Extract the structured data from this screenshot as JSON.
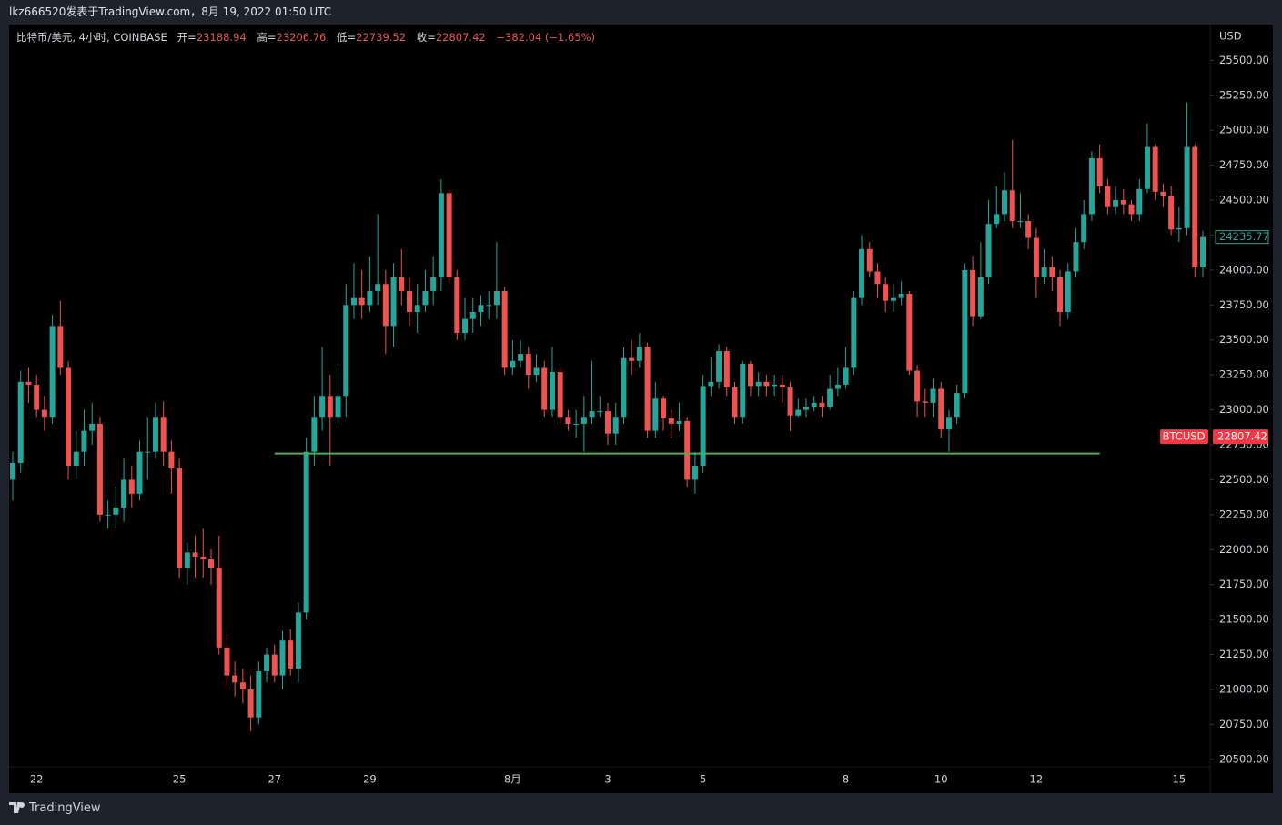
{
  "header": {
    "text": "lkz666520发表于TradingView.com，8月 19, 2022 01:50 UTC"
  },
  "footer": {
    "brand": "TradingView"
  },
  "chart_data": {
    "type": "candlestick",
    "symbol": "比特币/美元, 4小时, COINBASE",
    "legend": [
      {
        "label": "开=",
        "value": 23188.94
      },
      {
        "label": "高=",
        "value": 23206.76
      },
      {
        "label": "低=",
        "value": 22739.52
      },
      {
        "label": "收=",
        "value": 22807.42
      }
    ],
    "change": "−382.04 (−1.65%)",
    "currency": "USD",
    "up_color": "#26a69a",
    "down_color": "#ef5350",
    "categories": [
      null,
      null,
      null,
      "22",
      null,
      null,
      null,
      null,
      null,
      null,
      null,
      null,
      null,
      null,
      null,
      null,
      null,
      null,
      null,
      null,
      null,
      "25",
      null,
      null,
      null,
      null,
      null,
      null,
      null,
      null,
      null,
      null,
      null,
      "27",
      null,
      null,
      null,
      null,
      null,
      null,
      null,
      null,
      null,
      null,
      null,
      "29",
      null,
      null,
      null,
      null,
      null,
      null,
      null,
      null,
      null,
      null,
      null,
      null,
      null,
      null,
      null,
      null,
      null,
      "8月",
      null,
      null,
      null,
      null,
      null,
      null,
      null,
      null,
      null,
      null,
      null,
      "3",
      null,
      null,
      null,
      null,
      null,
      null,
      null,
      null,
      null,
      null,
      null,
      "5",
      null,
      null,
      null,
      null,
      null,
      null,
      null,
      null,
      null,
      null,
      null,
      null,
      null,
      null,
      null,
      null,
      null,
      "8",
      null,
      null,
      null,
      null,
      null,
      null,
      null,
      null,
      null,
      null,
      null,
      "10",
      null,
      null,
      null,
      null,
      null,
      null,
      null,
      null,
      null,
      null,
      null,
      "12",
      null,
      null,
      null,
      null,
      null,
      null,
      null,
      null,
      null,
      null,
      null,
      null,
      null,
      null,
      null,
      null,
      null,
      "15",
      null,
      null,
      null
    ],
    "open": [
      22500,
      22620,
      23200,
      23180,
      23000,
      22950,
      23600,
      23300,
      22600,
      22700,
      22850,
      22900,
      22250,
      22250,
      22300,
      22500,
      22400,
      22700,
      22700,
      22950,
      22700,
      22580,
      21870,
      21980,
      21950,
      21930,
      21870,
      21300,
      21100,
      21050,
      21000,
      20800,
      21130,
      21250,
      21100,
      21350,
      21150,
      21550,
      22700,
      22950,
      23100,
      22950,
      23100,
      23750,
      23800,
      23750,
      23850,
      23900,
      23600,
      23950,
      23850,
      23700,
      23750,
      23850,
      23950,
      24550,
      23950,
      23550,
      23650,
      23700,
      23750,
      23750,
      23850,
      23300,
      23350,
      23400,
      23250,
      23300,
      23000,
      23270,
      22950,
      22900,
      22900,
      22950,
      22990,
      22990,
      22830,
      22950,
      23370,
      23350,
      23450,
      22850,
      23080,
      22940,
      22900,
      22920,
      22500,
      22600,
      23170,
      23200,
      23420,
      23160,
      22950,
      23330,
      23170,
      23200,
      23170,
      23180,
      23160,
      22960,
      23000,
      23020,
      23050,
      23020,
      23150,
      23180,
      23300,
      23800,
      24150,
      23990,
      23900,
      23780,
      23800,
      23830,
      23280,
      23060,
      23050,
      23150,
      22860,
      22950,
      23120,
      24000,
      23670,
      23950,
      24330,
      24400,
      24570,
      24350,
      24350,
      24230,
      23950,
      24020,
      23950,
      23700,
      23990,
      24200,
      24400,
      24800,
      24600,
      24450,
      24500,
      24470,
      24400,
      24580,
      24880,
      24560,
      24530,
      24290,
      24300,
      24880,
      24020
    ],
    "high": [
      22700,
      23280,
      23300,
      23250,
      23100,
      23680,
      23780,
      23350,
      22850,
      23000,
      23050,
      22950,
      22350,
      22450,
      22650,
      22600,
      22780,
      22950,
      23050,
      23060,
      22780,
      22650,
      22050,
      22100,
      22150,
      22000,
      22100,
      21400,
      21200,
      21150,
      21100,
      21200,
      21300,
      21320,
      21420,
      21430,
      21620,
      22800,
      23100,
      23450,
      23250,
      23300,
      23900,
      24050,
      24000,
      24100,
      24400,
      24000,
      24050,
      24150,
      23950,
      23900,
      24000,
      24100,
      24650,
      24580,
      24000,
      23800,
      23800,
      23820,
      23850,
      24200,
      23880,
      23500,
      23500,
      23450,
      23400,
      23350,
      23450,
      23300,
      23000,
      23000,
      23100,
      23350,
      23100,
      23050,
      23050,
      23450,
      23500,
      23550,
      23480,
      23200,
      23100,
      23000,
      23050,
      22950,
      22700,
      23250,
      23380,
      23470,
      23450,
      23200,
      23350,
      23350,
      23270,
      23250,
      23250,
      23250,
      23200,
      23080,
      23080,
      23100,
      23100,
      23250,
      23300,
      23450,
      23850,
      24250,
      24200,
      24050,
      23950,
      23900,
      23920,
      23850,
      23320,
      23150,
      23220,
      23200,
      23000,
      23180,
      24050,
      24100,
      24200,
      24500,
      24600,
      24700,
      24930,
      24550,
      24400,
      24300,
      24150,
      24100,
      24000,
      24050,
      24300,
      24500,
      24850,
      24900,
      24650,
      24600,
      24580,
      24500,
      24650,
      25050,
      24900,
      24620,
      24600,
      24450,
      25200,
      24900,
      24280
    ],
    "low": [
      22350,
      22550,
      23050,
      22950,
      22850,
      22900,
      23250,
      22500,
      22500,
      22600,
      22750,
      22200,
      22150,
      22150,
      22200,
      22300,
      22350,
      22500,
      22650,
      22600,
      22400,
      21800,
      21750,
      21800,
      21800,
      21750,
      21250,
      21000,
      20950,
      20900,
      20700,
      20750,
      21050,
      21050,
      21000,
      21100,
      21050,
      21500,
      22600,
      22850,
      22600,
      22900,
      22950,
      23650,
      23650,
      23700,
      23750,
      23400,
      23450,
      23750,
      23600,
      23550,
      23700,
      23750,
      23850,
      23900,
      23500,
      23500,
      23550,
      23600,
      23650,
      23650,
      23250,
      23250,
      23300,
      23150,
      23200,
      22950,
      22950,
      22900,
      22850,
      22800,
      22700,
      22900,
      22950,
      22750,
      22750,
      22900,
      23250,
      23300,
      22800,
      22800,
      22850,
      22800,
      22850,
      22450,
      22400,
      22550,
      23100,
      23150,
      23100,
      22900,
      22900,
      23100,
      23100,
      23100,
      23100,
      23050,
      22850,
      22950,
      22950,
      22990,
      22950,
      23000,
      23100,
      23150,
      23250,
      23750,
      23950,
      23800,
      23700,
      23700,
      23750,
      23250,
      22950,
      22950,
      22950,
      22800,
      22700,
      22900,
      23080,
      23600,
      23650,
      23900,
      24300,
      24350,
      24300,
      24300,
      24150,
      23800,
      23900,
      23850,
      23600,
      23650,
      23950,
      24150,
      24350,
      24550,
      24400,
      24400,
      24400,
      24350,
      24350,
      24550,
      24500,
      24450,
      24250,
      24200,
      24250,
      23950,
      23950
    ],
    "close": [
      22620,
      23200,
      23180,
      23000,
      22950,
      23600,
      23300,
      22600,
      22700,
      22850,
      22900,
      22250,
      22250,
      22300,
      22500,
      22400,
      22700,
      22700,
      22950,
      22700,
      22580,
      21870,
      21980,
      21950,
      21930,
      21870,
      21300,
      21100,
      21050,
      21000,
      20800,
      21130,
      21250,
      21100,
      21350,
      21150,
      21550,
      22700,
      22950,
      23100,
      22950,
      23100,
      23750,
      23800,
      23750,
      23850,
      23900,
      23600,
      23950,
      23850,
      23700,
      23750,
      23850,
      23950,
      24550,
      23950,
      23550,
      23650,
      23700,
      23750,
      23750,
      23850,
      23300,
      23350,
      23400,
      23250,
      23300,
      23000,
      23270,
      22950,
      22900,
      22900,
      22950,
      22990,
      22990,
      22830,
      22950,
      23370,
      23350,
      23450,
      22850,
      23080,
      22940,
      22900,
      22920,
      22500,
      22600,
      23170,
      23200,
      23420,
      23160,
      22950,
      23330,
      23170,
      23200,
      23170,
      23180,
      23160,
      22960,
      23000,
      23020,
      23050,
      23020,
      23150,
      23180,
      23300,
      23800,
      24150,
      23990,
      23900,
      23780,
      23800,
      23830,
      23280,
      23060,
      23050,
      23150,
      22860,
      22950,
      23120,
      24000,
      23670,
      23950,
      24330,
      24400,
      24570,
      24350,
      24350,
      24230,
      23950,
      24020,
      23950,
      23700,
      23990,
      24200,
      24400,
      24800,
      24600,
      24450,
      24500,
      24470,
      24400,
      24580,
      24880,
      24560,
      24530,
      24290,
      24300,
      24880,
      24020,
      24235.77
    ],
    "ylim": [
      20258,
      25756
    ],
    "yticks": [
      {
        "value": 20500,
        "label": "20500.00"
      },
      {
        "value": 20750,
        "label": "20750.00"
      },
      {
        "value": 21000,
        "label": "21000.00"
      },
      {
        "value": 21250,
        "label": "21250.00"
      },
      {
        "value": 21500,
        "label": "21500.00"
      },
      {
        "value": 21750,
        "label": "21750.00"
      },
      {
        "value": 22000,
        "label": "22000.00"
      },
      {
        "value": 22250,
        "label": "22250.00"
      },
      {
        "value": 22500,
        "label": "22500.00"
      },
      {
        "value": 22750,
        "label": "22750.00"
      },
      {
        "value": 23000,
        "label": "23000.00"
      },
      {
        "value": 23250,
        "label": "23250.00"
      },
      {
        "value": 23500,
        "label": "23500.00"
      },
      {
        "value": 23750,
        "label": "23750.00"
      },
      {
        "value": 24000,
        "label": "24000.00"
      },
      {
        "value": 24250,
        "label": "24250.00"
      },
      {
        "value": 24500,
        "label": "24500.00"
      },
      {
        "value": 24750,
        "label": "24750.00"
      },
      {
        "value": 25000,
        "label": "25000.00"
      },
      {
        "value": 25250,
        "label": "25250.00"
      },
      {
        "value": 25500,
        "label": "25500.00"
      }
    ],
    "hline": {
      "value": 22687,
      "color": "#4caf50",
      "from": 33,
      "to": 137
    },
    "price_line": {
      "name": "BTCUSD",
      "value": 22807.42,
      "color": "#f23645"
    }
  }
}
